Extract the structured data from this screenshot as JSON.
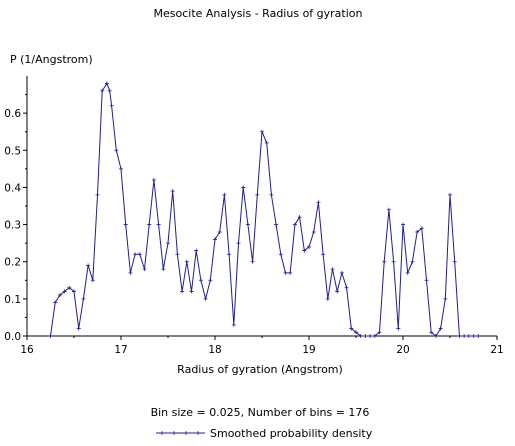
{
  "chart_data": {
    "type": "line",
    "title": "Mesocite Analysis - Radius of gyration",
    "xlabel": "Radius of gyration (Angstrom)",
    "ylabel": "P (1/Angstrom)",
    "xlim": [
      16,
      21
    ],
    "ylim": [
      0,
      0.7
    ],
    "xticks": [
      16,
      17,
      18,
      19,
      20,
      21
    ],
    "xtick_labels": [
      "16",
      "17",
      "18",
      "19",
      "20",
      "21"
    ],
    "yticks": [
      0,
      0.1,
      0.2,
      0.3,
      0.4,
      0.5,
      0.6
    ],
    "ytick_labels": [
      "0.0",
      "0.1",
      "0.2",
      "0.3",
      "0.4",
      "0.5",
      "0.6"
    ],
    "grid": false,
    "legend_position": "bottom-center",
    "note": "Bin size = 0.025, Number of bins = 176",
    "series": [
      {
        "name": "Smoothed probability density",
        "color": "#1f1f8f",
        "marker": "plus",
        "x": [
          16.25,
          16.3,
          16.35,
          16.4,
          16.45,
          16.5,
          16.55,
          16.6,
          16.65,
          16.7,
          16.75,
          16.8,
          16.85,
          16.88,
          16.9,
          16.95,
          17.0,
          17.05,
          17.1,
          17.15,
          17.2,
          17.25,
          17.3,
          17.35,
          17.4,
          17.45,
          17.5,
          17.55,
          17.6,
          17.65,
          17.7,
          17.75,
          17.8,
          17.85,
          17.9,
          17.95,
          18.0,
          18.05,
          18.1,
          18.15,
          18.2,
          18.25,
          18.3,
          18.35,
          18.4,
          18.45,
          18.5,
          18.55,
          18.6,
          18.65,
          18.7,
          18.75,
          18.8,
          18.85,
          18.9,
          18.95,
          19.0,
          19.05,
          19.1,
          19.15,
          19.2,
          19.25,
          19.3,
          19.35,
          19.4,
          19.45,
          19.5,
          19.55,
          19.6,
          19.65,
          19.7,
          19.75,
          19.8,
          19.85,
          19.9,
          19.95,
          20.0,
          20.05,
          20.1,
          20.15,
          20.2,
          20.25,
          20.3,
          20.35,
          20.4,
          20.45,
          20.5,
          20.55,
          20.6,
          20.65,
          20.7,
          20.75,
          20.8
        ],
        "y": [
          0.0,
          0.09,
          0.11,
          0.12,
          0.13,
          0.12,
          0.02,
          0.1,
          0.19,
          0.15,
          0.38,
          0.66,
          0.68,
          0.66,
          0.62,
          0.5,
          0.45,
          0.3,
          0.17,
          0.22,
          0.22,
          0.18,
          0.3,
          0.42,
          0.3,
          0.18,
          0.25,
          0.39,
          0.22,
          0.12,
          0.2,
          0.12,
          0.23,
          0.15,
          0.1,
          0.15,
          0.26,
          0.28,
          0.38,
          0.22,
          0.03,
          0.25,
          0.4,
          0.3,
          0.2,
          0.38,
          0.55,
          0.52,
          0.38,
          0.3,
          0.22,
          0.17,
          0.17,
          0.3,
          0.32,
          0.23,
          0.24,
          0.28,
          0.36,
          0.22,
          0.1,
          0.18,
          0.12,
          0.17,
          0.13,
          0.02,
          0.01,
          0.0,
          0.0,
          0.0,
          0.0,
          0.01,
          0.2,
          0.34,
          0.2,
          0.02,
          0.3,
          0.17,
          0.2,
          0.28,
          0.29,
          0.15,
          0.01,
          0.0,
          0.02,
          0.1,
          0.38,
          0.2,
          0.0,
          0.0,
          0.0,
          0.0,
          0.0
        ]
      }
    ]
  }
}
